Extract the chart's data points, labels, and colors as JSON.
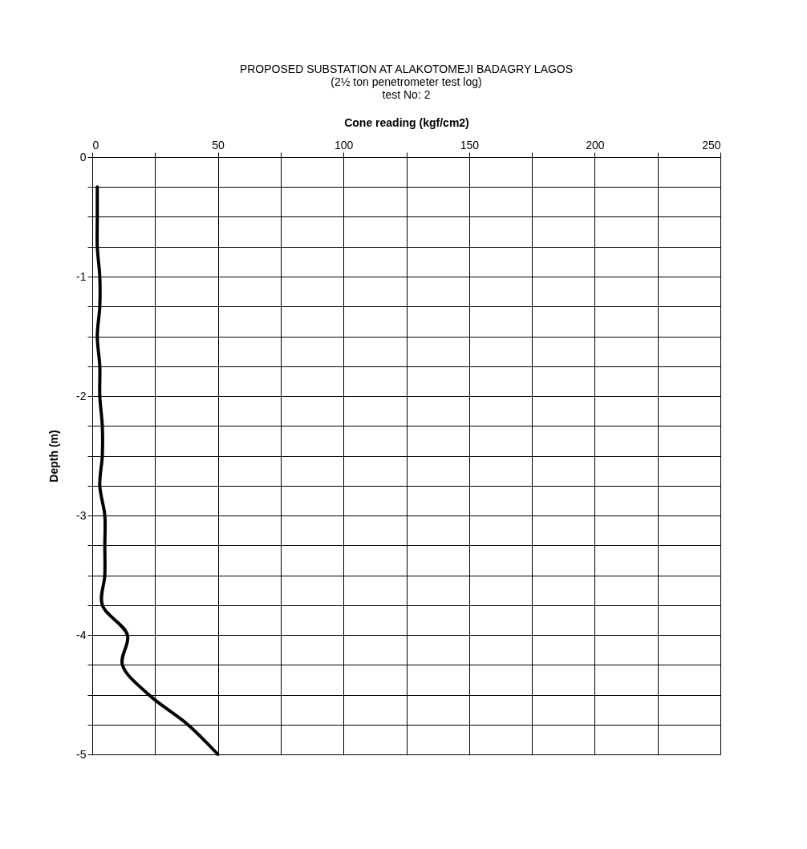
{
  "chart_data": {
    "type": "line",
    "title": [
      "PROPOSED SUBSTATION AT ALAKOTOMEJI BADAGRY LAGOS",
      "(2½ ton penetrometer test log)",
      "test No: 2"
    ],
    "xlabel": "Cone reading (kgf/cm2)",
    "ylabel": "Depth (m)",
    "series": [
      {
        "color": "#000000",
        "x": [
          2,
          2,
          2,
          3,
          3,
          2,
          3,
          3,
          4,
          4,
          3,
          5,
          5,
          5,
          4,
          14,
          12,
          22.5,
          38,
          50
        ],
        "values": [
          -0.25,
          -0.5,
          -0.75,
          -1.0,
          -1.25,
          -1.5,
          -1.75,
          -2.0,
          -2.25,
          -2.5,
          -2.75,
          -3.0,
          -3.25,
          -3.5,
          -3.75,
          -4.0,
          -4.25,
          -4.5,
          -4.75,
          -5.0
        ]
      }
    ],
    "xlim": [
      0,
      250
    ],
    "xticks": [
      0,
      50,
      100,
      150,
      200,
      250,
      {
        "value": 25,
        "label": null
      },
      {
        "value": 75,
        "label": null
      },
      {
        "value": 125,
        "label": null
      },
      {
        "value": 175,
        "label": null
      },
      {
        "value": 225,
        "label": null
      }
    ],
    "ylim": [
      -5,
      0
    ],
    "yticks": [
      0,
      -1,
      -2,
      -3,
      -4,
      -5,
      {
        "value": -0.25,
        "label": null
      },
      {
        "value": -0.5,
        "label": null
      },
      {
        "value": -0.75,
        "label": null
      },
      {
        "value": -1.25,
        "label": null
      },
      {
        "value": -1.5,
        "label": null
      },
      {
        "value": -1.75,
        "label": null
      },
      {
        "value": -2.25,
        "label": null
      },
      {
        "value": -2.5,
        "label": null
      },
      {
        "value": -2.75,
        "label": null
      },
      {
        "value": -3.25,
        "label": null
      },
      {
        "value": -3.5,
        "label": null
      },
      {
        "value": -3.75,
        "label": null
      },
      {
        "value": -4.25,
        "label": null
      },
      {
        "value": -4.5,
        "label": null
      },
      {
        "value": -4.75,
        "label": null
      }
    ],
    "grid": true,
    "marker": "none",
    "line_style": "solid"
  }
}
